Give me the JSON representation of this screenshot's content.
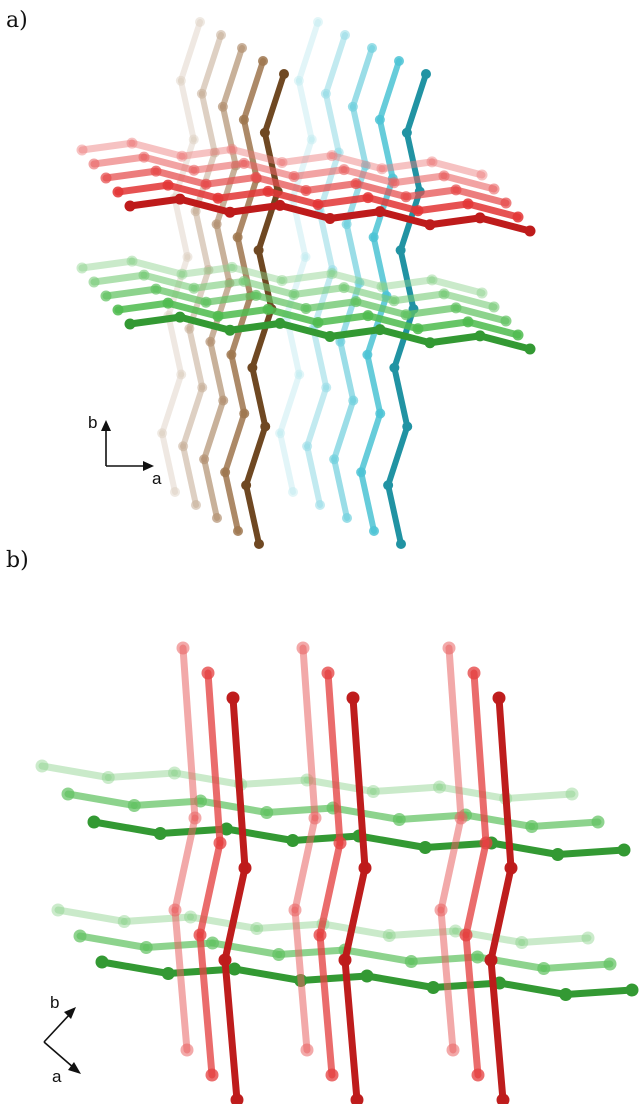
{
  "panel_a": {
    "label": "a)",
    "axes": {
      "vertical": "b",
      "horizontal": "a"
    },
    "colors": {
      "red": "#e02020",
      "green": "#3cb43c",
      "brown": "#8b5a2b",
      "cyan": "#29b8cc"
    }
  },
  "panel_b": {
    "label": "b)",
    "axes": {
      "up": "b",
      "down": "a"
    },
    "colors": {
      "red": "#e02020",
      "green": "#3cb43c"
    }
  }
}
